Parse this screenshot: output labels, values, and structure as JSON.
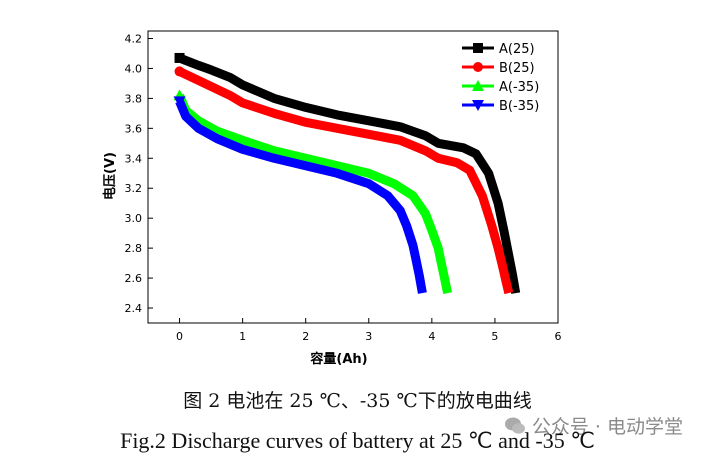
{
  "chart_data": {
    "type": "line",
    "xlabel": "容量(Ah)",
    "ylabel": "电压(V)",
    "xlim": [
      -0.5,
      6
    ],
    "ylim": [
      2.3,
      4.25
    ],
    "xticks": [
      "0",
      "1",
      "2",
      "3",
      "4",
      "5",
      "6"
    ],
    "xtick_values": [
      0,
      1,
      2,
      3,
      4,
      5,
      6
    ],
    "yticks": [
      "2.4",
      "2.6",
      "2.8",
      "3.0",
      "3.2",
      "3.4",
      "3.6",
      "3.8",
      "4.0",
      "4.2"
    ],
    "ytick_values": [
      2.4,
      2.6,
      2.8,
      3.0,
      3.2,
      3.4,
      3.6,
      3.8,
      4.0,
      4.2
    ],
    "legend_position": "top-right",
    "series": [
      {
        "name": "A(25)",
        "color": "#000000",
        "marker": "square",
        "x": [
          0,
          0.3,
          0.5,
          0.8,
          1.0,
          1.5,
          2.0,
          2.5,
          3.0,
          3.5,
          3.9,
          4.1,
          4.5,
          4.7,
          4.9,
          5.05,
          5.15,
          5.22,
          5.28,
          5.33
        ],
        "y": [
          4.07,
          4.02,
          3.99,
          3.94,
          3.89,
          3.8,
          3.74,
          3.69,
          3.65,
          3.61,
          3.55,
          3.5,
          3.47,
          3.43,
          3.3,
          3.1,
          2.9,
          2.75,
          2.62,
          2.5
        ]
      },
      {
        "name": "B(25)",
        "color": "#ff0000",
        "marker": "circle",
        "x": [
          0,
          0.3,
          0.5,
          0.8,
          1.0,
          1.5,
          2.0,
          2.5,
          3.0,
          3.5,
          3.9,
          4.1,
          4.4,
          4.6,
          4.8,
          4.95,
          5.05,
          5.12,
          5.18,
          5.22
        ],
        "y": [
          3.98,
          3.92,
          3.88,
          3.82,
          3.77,
          3.7,
          3.64,
          3.6,
          3.56,
          3.52,
          3.45,
          3.4,
          3.37,
          3.32,
          3.15,
          2.95,
          2.8,
          2.68,
          2.57,
          2.5
        ]
      },
      {
        "name": "A(-35)",
        "color": "#00ff00",
        "marker": "triangle-up",
        "x": [
          0,
          0.1,
          0.3,
          0.6,
          1.0,
          1.5,
          2.0,
          2.5,
          3.0,
          3.4,
          3.7,
          3.9,
          4.0,
          4.1,
          4.15,
          4.2,
          4.25
        ],
        "y": [
          3.82,
          3.72,
          3.65,
          3.58,
          3.52,
          3.45,
          3.4,
          3.35,
          3.3,
          3.23,
          3.15,
          3.03,
          2.92,
          2.8,
          2.7,
          2.6,
          2.5
        ]
      },
      {
        "name": "B(-35)",
        "color": "#0000ff",
        "marker": "triangle-down",
        "x": [
          0,
          0.1,
          0.3,
          0.6,
          1.0,
          1.5,
          2.0,
          2.5,
          3.0,
          3.3,
          3.5,
          3.6,
          3.7,
          3.75,
          3.8,
          3.85
        ],
        "y": [
          3.78,
          3.68,
          3.6,
          3.53,
          3.46,
          3.4,
          3.35,
          3.3,
          3.23,
          3.15,
          3.05,
          2.95,
          2.82,
          2.72,
          2.62,
          2.5
        ]
      }
    ]
  },
  "caption_cn": "图 2  电池在 25 ℃、-35 ℃下的放电曲线",
  "caption_en": "Fig.2 Discharge curves of battery at 25 ℃ and -35 ℃",
  "watermark": "公众号 · 电动学堂"
}
